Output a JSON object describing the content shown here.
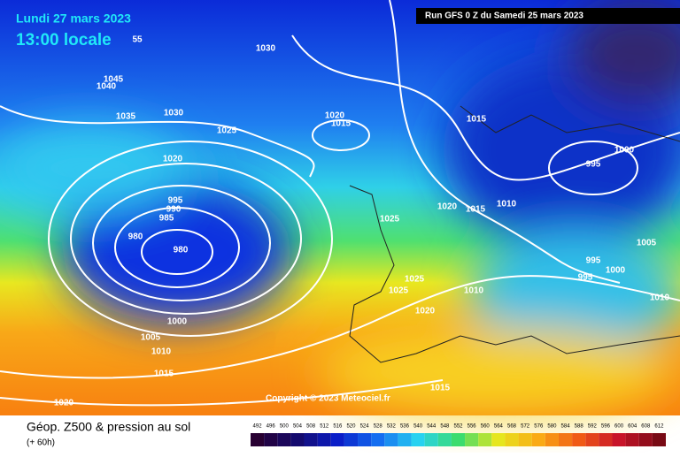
{
  "header": {
    "date": "Lundi 27 mars 2023",
    "time": "13:00 locale",
    "run": "Run GFS 0 Z du Samedi 25 mars 2023"
  },
  "isobar_labels": [
    "55",
    "1030",
    "1045",
    "1040",
    "1035",
    "1030",
    "1025",
    "1020",
    "1020",
    "1015",
    "1015",
    "1000",
    "995",
    "995",
    "990",
    "985",
    "980",
    "980",
    "1025",
    "1020",
    "1015",
    "1010",
    "1005",
    "995",
    "1000",
    "995",
    "1025",
    "1025",
    "1010",
    "1010",
    "1020",
    "1000",
    "1005",
    "1010",
    "1015",
    "1015",
    "1020"
  ],
  "copyright": "Copyright © 2023 Meteociel.fr",
  "footer": {
    "title": "Géop. Z500 & pression au sol",
    "lead": "(+ 60h)"
  },
  "scale": [
    "492",
    "496",
    "500",
    "504",
    "508",
    "512",
    "516",
    "520",
    "524",
    "528",
    "532",
    "536",
    "540",
    "544",
    "548",
    "552",
    "556",
    "560",
    "564",
    "568",
    "572",
    "576",
    "580",
    "584",
    "588",
    "592",
    "596",
    "600",
    "604",
    "608",
    "612"
  ]
}
